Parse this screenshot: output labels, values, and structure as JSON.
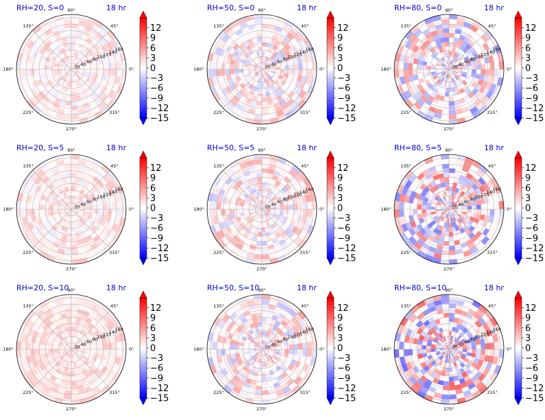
{
  "chart_data": {
    "type": "polar-heatmap-grid",
    "rows": 3,
    "cols": 3,
    "panels": [
      {
        "title": "RH=20, S=0",
        "time_label": "18 hr",
        "rh": 20,
        "s": 0,
        "pattern": {
          "amp": 2.5,
          "bias": 1.0
        }
      },
      {
        "title": "RH=50, S=0",
        "time_label": "18 hr",
        "rh": 50,
        "s": 0,
        "pattern": {
          "amp": 4.5,
          "bias": 0.8
        }
      },
      {
        "title": "RH=80, S=0",
        "time_label": "18 hr",
        "rh": 80,
        "s": 0,
        "pattern": {
          "amp": 7.5,
          "bias": 0.2
        }
      },
      {
        "title": "RH=20, S=5",
        "time_label": "18 hr",
        "rh": 20,
        "s": 5,
        "pattern": {
          "amp": 2.5,
          "bias": 1.2
        }
      },
      {
        "title": "RH=50, S=5",
        "time_label": "18 hr",
        "rh": 50,
        "s": 5,
        "pattern": {
          "amp": 4.5,
          "bias": 1.0
        }
      },
      {
        "title": "RH=80, S=5",
        "time_label": "18 hr",
        "rh": 80,
        "s": 5,
        "pattern": {
          "amp": 9.0,
          "bias": 0.5
        }
      },
      {
        "title": "RH=20, S=10",
        "time_label": "18 hr",
        "rh": 20,
        "s": 10,
        "pattern": {
          "amp": 2.0,
          "bias": 1.6
        }
      },
      {
        "title": "RH=50, S=10",
        "time_label": "18 hr",
        "rh": 50,
        "s": 10,
        "pattern": {
          "amp": 5.0,
          "bias": 0.8
        }
      },
      {
        "title": "RH=80, S=10",
        "time_label": "18 hr",
        "rh": 80,
        "s": 10,
        "pattern": {
          "amp": 10.0,
          "bias": 0.6
        }
      }
    ],
    "radial_ticks": [
      "20",
      "40",
      "60",
      "80",
      "100",
      "120",
      "140",
      "160"
    ],
    "radial_max": 170,
    "angle_ticks": [
      {
        "deg": 0,
        "label": "0°"
      },
      {
        "deg": 45,
        "label": "45°"
      },
      {
        "deg": 90,
        "label": "90°"
      },
      {
        "deg": 135,
        "label": "135°"
      },
      {
        "deg": 180,
        "label": "180°"
      },
      {
        "deg": 225,
        "label": "225°"
      },
      {
        "deg": 270,
        "label": "270°"
      },
      {
        "deg": 315,
        "label": "315°"
      }
    ],
    "colorbar": {
      "cmap": "bwr",
      "vmin": -15,
      "vmax": 15,
      "extend": "both",
      "tick_labels": [
        "12",
        "9",
        "6",
        "3",
        "0",
        "−3",
        "−6",
        "−9",
        "−12",
        "−15"
      ]
    },
    "colors": {
      "title": "#0000cc",
      "grid": "#b0b0b0",
      "axis": "#000000",
      "negative": "#0000ff",
      "positive": "#ff0000"
    }
  }
}
